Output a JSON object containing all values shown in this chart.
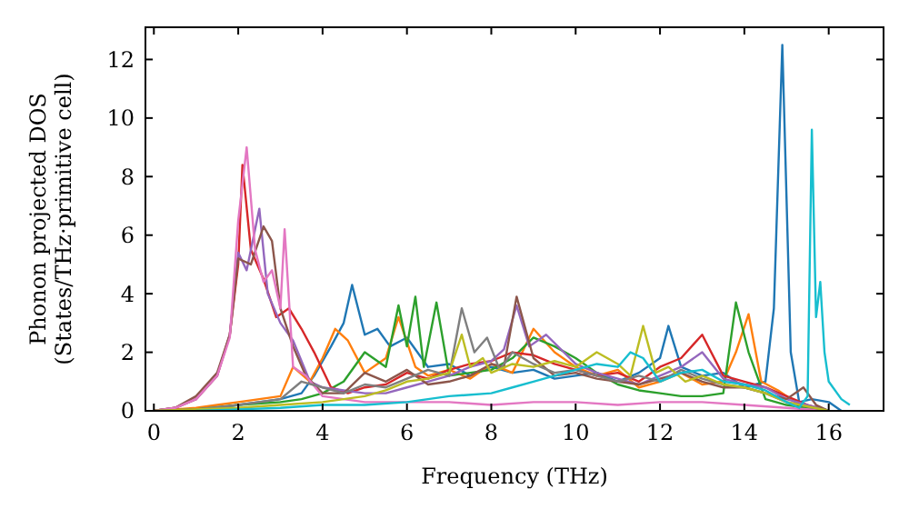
{
  "chart_data": {
    "type": "line",
    "xlabel": "Frequency (THz)",
    "ylabel": "Phonon projected DOS\n(States/THz·primitive cell)",
    "xlim": [
      -0.2,
      17.3
    ],
    "ylim": [
      0,
      13.1
    ],
    "xticks": [
      0,
      2,
      4,
      6,
      8,
      10,
      12,
      14,
      16
    ],
    "yticks": [
      0,
      2,
      4,
      6,
      8,
      10,
      12
    ],
    "grid": false,
    "marker": "none",
    "line_style": "solid",
    "series": [
      {
        "color": "#1f77b4",
        "x": [
          1.5,
          2,
          2.5,
          3,
          3.5,
          3.8,
          4.2,
          4.5,
          4.7,
          5,
          5.3,
          5.6,
          6,
          6.5,
          7,
          7.5,
          8,
          8.5,
          9,
          9.5,
          10,
          10.5,
          11,
          11.5,
          12,
          12.2,
          12.5,
          13,
          13.5,
          14,
          14.5,
          14.7,
          14.9,
          15.1,
          15.3,
          15.6,
          16,
          16.3
        ],
        "values": [
          0.1,
          0.2,
          0.3,
          0.4,
          0.6,
          1.2,
          2.2,
          3,
          4.3,
          2.6,
          2.8,
          2.2,
          2.5,
          1.5,
          1.6,
          1.2,
          1.5,
          1.3,
          1.4,
          1.1,
          1.2,
          1.3,
          1.0,
          1.3,
          1.8,
          2.9,
          1.5,
          1.2,
          1.3,
          0.8,
          1.0,
          3.5,
          12.5,
          2,
          0.3,
          0.4,
          0.3,
          0
        ]
      },
      {
        "color": "#ff7f0e",
        "x": [
          0,
          0.5,
          1,
          1.5,
          2,
          2.5,
          3,
          3.3,
          3.7,
          4,
          4.3,
          4.6,
          5,
          5.5,
          5.8,
          6.2,
          6.5,
          7,
          7.5,
          8,
          8.5,
          9,
          9.5,
          10,
          10.5,
          11,
          11.5,
          12,
          12.5,
          13,
          13.5,
          13.8,
          14.1,
          14.4,
          14.8,
          15.2,
          15.6,
          16
        ],
        "values": [
          0,
          0.05,
          0.1,
          0.2,
          0.3,
          0.4,
          0.5,
          1.5,
          1.0,
          1.8,
          2.8,
          2.4,
          1.3,
          1.8,
          3.2,
          1.5,
          1.2,
          1.4,
          1.1,
          1.6,
          1.3,
          2.8,
          2.0,
          1.5,
          1.2,
          1.4,
          0.8,
          1.0,
          1.3,
          0.9,
          1.0,
          2.0,
          3.3,
          1.0,
          0.7,
          0.3,
          0.1,
          0
        ]
      },
      {
        "color": "#2ca02c",
        "x": [
          0,
          1,
          2,
          3,
          3.5,
          4,
          4.5,
          5,
          5.5,
          5.8,
          6,
          6.2,
          6.4,
          6.7,
          7,
          7.5,
          8,
          8.5,
          9,
          9.5,
          10,
          10.5,
          11,
          11.5,
          12,
          12.5,
          13,
          13.5,
          13.8,
          14.1,
          14.5,
          15,
          15.5,
          16
        ],
        "values": [
          0,
          0.05,
          0.2,
          0.3,
          0.4,
          0.6,
          1.0,
          2.0,
          1.5,
          3.6,
          2.2,
          3.9,
          1.5,
          3.7,
          1.2,
          1.3,
          1.4,
          1.8,
          2.5,
          2.2,
          1.8,
          1.3,
          0.9,
          0.7,
          0.6,
          0.5,
          0.5,
          0.6,
          3.7,
          2.0,
          0.4,
          0.2,
          0.1,
          0
        ]
      },
      {
        "color": "#d62728",
        "x": [
          0,
          0.5,
          1,
          1.5,
          1.8,
          2,
          2.1,
          2.3,
          2.6,
          2.9,
          3.2,
          3.5,
          3.8,
          4.2,
          4.6,
          5,
          5.5,
          6,
          6.5,
          7,
          7.5,
          8,
          8.5,
          9,
          9.5,
          10,
          10.5,
          11,
          11.5,
          12,
          12.5,
          13,
          13.5,
          14,
          14.5,
          15,
          15.5,
          16
        ],
        "values": [
          0,
          0.1,
          0.4,
          1.2,
          2.6,
          5,
          8.4,
          5.5,
          4.5,
          3.2,
          3.5,
          2.8,
          2.0,
          0.8,
          0.6,
          0.8,
          0.9,
          1.3,
          1.1,
          1.4,
          1.6,
          1.7,
          2.0,
          1.9,
          1.6,
          1.4,
          1.2,
          1.3,
          1.0,
          1.5,
          1.8,
          2.6,
          1.2,
          1.0,
          0.8,
          0.5,
          0.2,
          0
        ]
      },
      {
        "color": "#9467bd",
        "x": [
          0,
          0.5,
          1,
          1.5,
          1.8,
          2,
          2.2,
          2.5,
          2.7,
          3,
          3.3,
          3.7,
          4,
          4.5,
          5,
          5.5,
          6,
          6.5,
          7,
          7.5,
          8,
          8.3,
          8.6,
          8.9,
          9.3,
          10,
          10.5,
          11,
          11.5,
          12,
          12.5,
          13,
          13.5,
          14,
          14.5,
          15,
          15.5,
          16
        ],
        "values": [
          0,
          0.1,
          0.4,
          1.2,
          2.6,
          5.4,
          4.8,
          6.9,
          4.0,
          3.0,
          2.4,
          1.0,
          0.8,
          0.7,
          0.6,
          0.6,
          0.8,
          1.0,
          1.2,
          1.5,
          1.7,
          2.1,
          3.6,
          2.2,
          2.6,
          1.6,
          1.3,
          1.1,
          0.9,
          1.2,
          1.5,
          2.0,
          1.1,
          0.9,
          0.8,
          0.4,
          0.2,
          0
        ]
      },
      {
        "color": "#8c564b",
        "x": [
          0,
          0.5,
          1,
          1.5,
          1.8,
          2,
          2.3,
          2.6,
          2.8,
          3,
          3.3,
          3.6,
          4,
          4.5,
          5,
          5.5,
          6,
          6.5,
          7,
          7.5,
          8,
          8.3,
          8.6,
          9,
          9.5,
          10,
          10.5,
          11,
          11.5,
          12,
          12.5,
          13,
          13.5,
          14,
          14.5,
          15,
          15.4,
          15.7,
          16
        ],
        "values": [
          0,
          0.1,
          0.5,
          1.3,
          2.6,
          5.2,
          5.0,
          6.3,
          5.8,
          3.5,
          2.2,
          1.2,
          0.6,
          0.6,
          1.3,
          1.0,
          1.4,
          0.9,
          1.0,
          1.2,
          1.6,
          1.5,
          3.9,
          1.8,
          1.2,
          1.3,
          1.1,
          1.0,
          0.9,
          1.1,
          1.3,
          1.0,
          0.8,
          0.8,
          0.6,
          0.4,
          0.8,
          0.2,
          0
        ]
      },
      {
        "color": "#e377c2",
        "x": [
          0,
          0.5,
          1,
          1.5,
          1.8,
          2,
          2.2,
          2.4,
          2.6,
          2.8,
          3.0,
          3.1,
          3.3,
          3.6,
          4,
          4.5,
          5,
          6,
          7,
          8,
          9,
          10,
          11,
          12,
          13,
          14,
          15,
          16
        ],
        "values": [
          0,
          0.1,
          0.4,
          1.2,
          2.5,
          6.5,
          9,
          5.5,
          4.4,
          4.8,
          3.5,
          6.2,
          1.5,
          1.2,
          0.5,
          0.4,
          0.3,
          0.3,
          0.3,
          0.2,
          0.3,
          0.3,
          0.2,
          0.3,
          0.3,
          0.2,
          0.1,
          0
        ]
      },
      {
        "color": "#7f7f7f",
        "x": [
          0,
          1,
          2,
          3,
          3.5,
          4,
          4.5,
          5,
          5.5,
          6,
          6.5,
          7,
          7.3,
          7.6,
          7.9,
          8.2,
          8.5,
          9,
          9.5,
          10,
          10.5,
          11,
          11.5,
          12,
          12.5,
          13,
          13.5,
          14,
          14.5,
          15,
          16
        ],
        "values": [
          0,
          0.05,
          0.2,
          0.4,
          1.0,
          0.8,
          0.6,
          0.9,
          0.8,
          1.1,
          1.4,
          1.2,
          3.5,
          2.0,
          2.5,
          1.4,
          2.0,
          1.6,
          1.3,
          1.4,
          1.2,
          1.0,
          1.2,
          1.0,
          1.4,
          1.1,
          0.9,
          0.8,
          0.6,
          0.3,
          0
        ]
      },
      {
        "color": "#bcbd22",
        "x": [
          0,
          1,
          2,
          3,
          4,
          5,
          5.5,
          6,
          6.5,
          7,
          7.3,
          7.5,
          7.8,
          8,
          8.5,
          9,
          9.5,
          10,
          10.5,
          11,
          11.3,
          11.6,
          11.9,
          12.2,
          12.6,
          13,
          13.5,
          14,
          14.5,
          15,
          16
        ],
        "values": [
          0,
          0.05,
          0.1,
          0.2,
          0.3,
          0.5,
          0.7,
          1.0,
          1.1,
          1.3,
          2.6,
          1.5,
          1.8,
          1.3,
          1.6,
          1.5,
          1.7,
          1.5,
          2.0,
          1.6,
          1.2,
          2.9,
          1.3,
          1.5,
          1.0,
          1.2,
          0.9,
          0.8,
          0.6,
          0.3,
          0
        ]
      },
      {
        "color": "#17becf",
        "x": [
          1,
          2,
          3,
          4,
          5,
          6,
          7,
          8,
          8.5,
          9,
          9.5,
          10,
          10.5,
          11,
          11.3,
          11.6,
          12,
          12.5,
          13,
          13.5,
          14,
          14.5,
          15,
          15.3,
          15.5,
          15.6,
          15.7,
          15.8,
          15.9,
          16,
          16.3,
          16.5
        ],
        "values": [
          0,
          0.05,
          0.1,
          0.2,
          0.2,
          0.3,
          0.5,
          0.6,
          0.8,
          1.0,
          1.2,
          1.4,
          1.6,
          1.5,
          2.0,
          1.8,
          1.0,
          1.3,
          1.4,
          1.0,
          0.9,
          0.7,
          0.3,
          0.1,
          0.5,
          9.6,
          3.2,
          4.4,
          2.0,
          1.0,
          0.4,
          0.2
        ]
      }
    ]
  }
}
